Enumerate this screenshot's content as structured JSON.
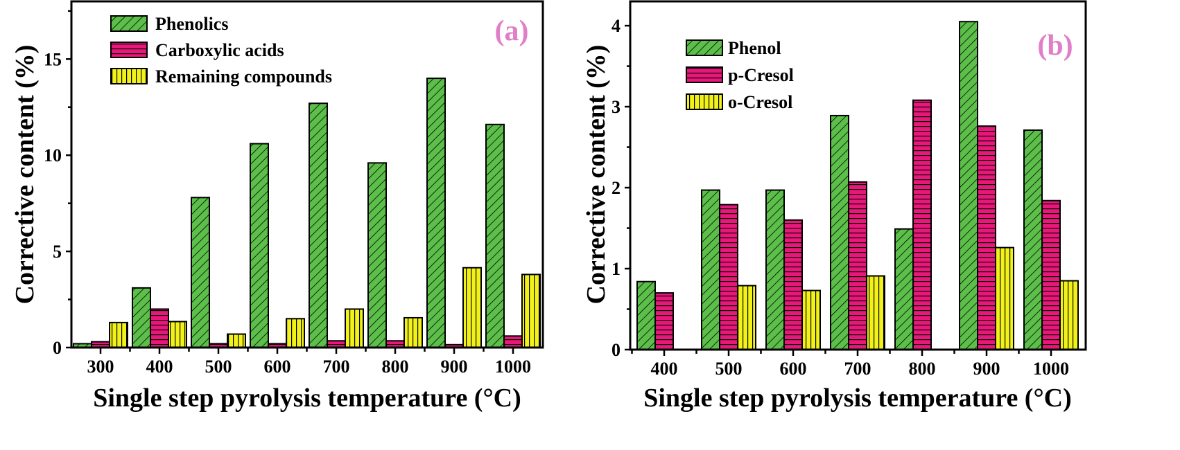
{
  "colors": {
    "series_green": "#5cbf4a",
    "series_pink": "#e8177a",
    "series_yellow": "#f2f21a",
    "panel_label": "#e07fc7"
  },
  "chart_data": [
    {
      "type": "bar",
      "panel_label": "(a)",
      "xlabel": "Single step pyrolysis temperature (°C)",
      "ylabel": "Corrective content (%)",
      "categories": [
        "300",
        "400",
        "500",
        "600",
        "700",
        "800",
        "900",
        "1000"
      ],
      "ylim": [
        0,
        18
      ],
      "yticks": [
        0,
        5,
        10,
        15
      ],
      "ytick_labels": [
        "0",
        "5",
        "10",
        "15"
      ],
      "legend_position": "top-left",
      "series": [
        {
          "name": "Phenolics",
          "color_key": "series_green",
          "pattern": "diagonal",
          "values": [
            0.2,
            3.1,
            7.8,
            10.6,
            12.7,
            9.6,
            14.0,
            11.6
          ]
        },
        {
          "name": "Carboxylic acids",
          "color_key": "series_pink",
          "pattern": "horizontal",
          "values": [
            0.3,
            2.0,
            0.2,
            0.2,
            0.35,
            0.35,
            0.15,
            0.6
          ]
        },
        {
          "name": "Remaining compounds",
          "color_key": "series_yellow",
          "pattern": "vertical",
          "values": [
            1.3,
            1.35,
            0.7,
            1.5,
            2.0,
            1.55,
            4.15,
            3.8
          ]
        }
      ]
    },
    {
      "type": "bar",
      "panel_label": "(b)",
      "xlabel": "Single step pyrolysis temperature (°C)",
      "ylabel": "Corrective content (%)",
      "categories": [
        "400",
        "500",
        "600",
        "700",
        "800",
        "900",
        "1000"
      ],
      "ylim": [
        0,
        4.3
      ],
      "yticks": [
        0,
        1,
        2,
        3,
        4
      ],
      "ytick_labels": [
        "0",
        "1",
        "2",
        "3",
        "4"
      ],
      "legend_position": "top-left",
      "series": [
        {
          "name": "Phenol",
          "color_key": "series_green",
          "pattern": "diagonal",
          "values": [
            0.84,
            1.97,
            1.97,
            2.89,
            1.49,
            4.05,
            2.71
          ]
        },
        {
          "name": "p-Cresol",
          "color_key": "series_pink",
          "pattern": "horizontal",
          "values": [
            0.7,
            1.79,
            1.6,
            2.07,
            3.08,
            2.76,
            1.84
          ]
        },
        {
          "name": "o-Cresol",
          "color_key": "series_yellow",
          "pattern": "vertical",
          "values": [
            0,
            0.79,
            0.73,
            0.91,
            0,
            1.26,
            0.85
          ]
        }
      ]
    }
  ]
}
